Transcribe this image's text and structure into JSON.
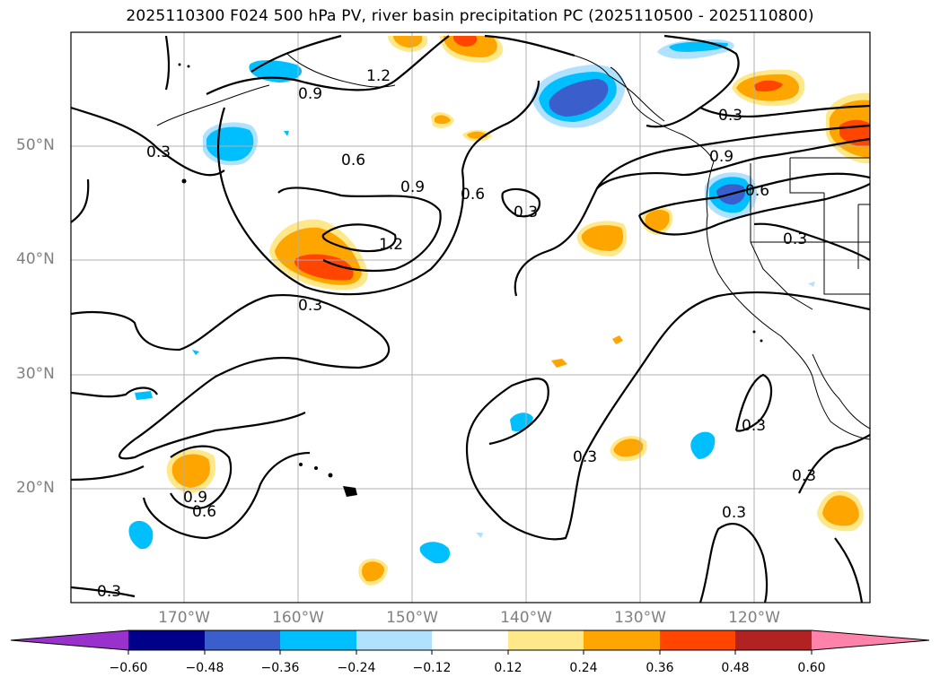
{
  "title": "2025110300 F024 500 hPa PV, river basin precipitation PC (2025110500 - 2025110800)",
  "map": {
    "lat_labels": [
      "50°N",
      "40°N",
      "30°N",
      "20°N"
    ],
    "lon_labels": [
      "170°W",
      "160°W",
      "150°W",
      "140°W",
      "130°W",
      "120°W"
    ],
    "contour_labels": [
      "1.2",
      "0.9",
      "0.3",
      "0.6",
      "0.9",
      "0.6",
      "0.3",
      "1.2",
      "0.3",
      "0.3",
      "0.9",
      "0.6",
      "0.3",
      "0.3",
      "0.9",
      "0.6",
      "0.3",
      "0.3",
      "0.3",
      "0.3"
    ],
    "contour_variable": "500 hPa PV",
    "shading_variable": "river basin precipitation PC"
  },
  "colorbar": {
    "ticks": [
      "−0.60",
      "−0.48",
      "−0.36",
      "−0.24",
      "−0.12",
      "0.12",
      "0.24",
      "0.36",
      "0.48",
      "0.60"
    ],
    "colors": [
      "#9932cc",
      "#00008b",
      "#3a5fcd",
      "#00bfff",
      "#b0e2ff",
      "#ffffff",
      "#ffe88a",
      "#ffa500",
      "#ff4500",
      "#b22222",
      "#ff82ab"
    ]
  }
}
